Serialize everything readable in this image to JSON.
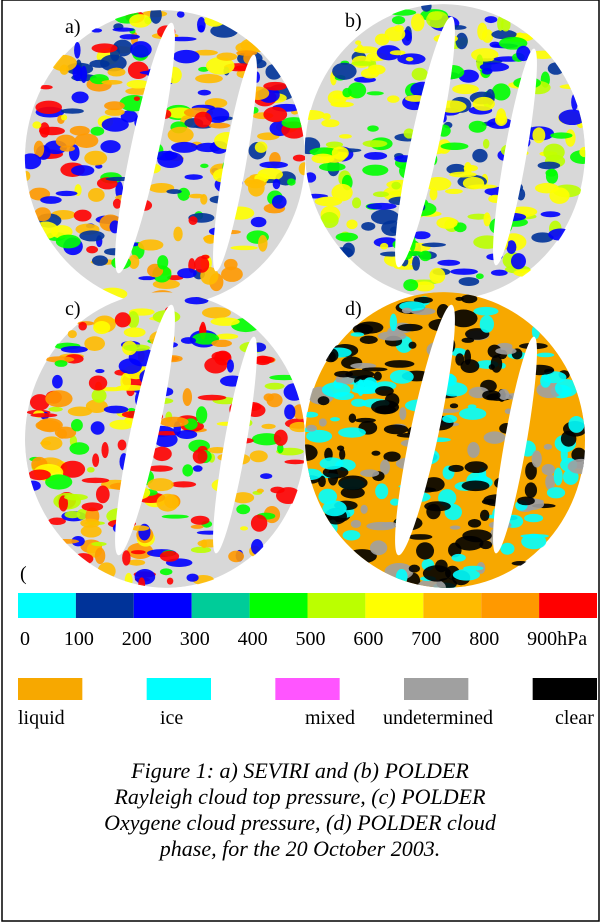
{
  "panels": [
    {
      "label": "a)"
    },
    {
      "label": "b)"
    },
    {
      "label": "c)"
    },
    {
      "label": "d)"
    }
  ],
  "stray_mark": "(",
  "pressure_scale": {
    "colors": [
      "#00ffff",
      "#003399",
      "#0000ff",
      "#00cc99",
      "#00ff00",
      "#bbff00",
      "#ffff00",
      "#ffbb00",
      "#ff9900",
      "#ff0000"
    ],
    "labels": [
      "0",
      "100",
      "200",
      "300",
      "400",
      "500",
      "600",
      "700",
      "800",
      "900hPa"
    ]
  },
  "phase_legend": {
    "items": [
      {
        "label": "liquid",
        "color": "#f7a800"
      },
      {
        "label": "ice",
        "color": "#00ffff"
      },
      {
        "label": "mixed",
        "color": "#ff55ff"
      },
      {
        "label": "undetermined",
        "color": "#a0a0a0"
      },
      {
        "label": "clear",
        "color": "#000000"
      }
    ]
  },
  "caption": "Figure 1: a) SEVIRI and (b) POLDER Rayleigh cloud top pressure, (c) POLDER Oxygene cloud pressure, (d) POLDER cloud phase, for the 20 October 2003."
}
